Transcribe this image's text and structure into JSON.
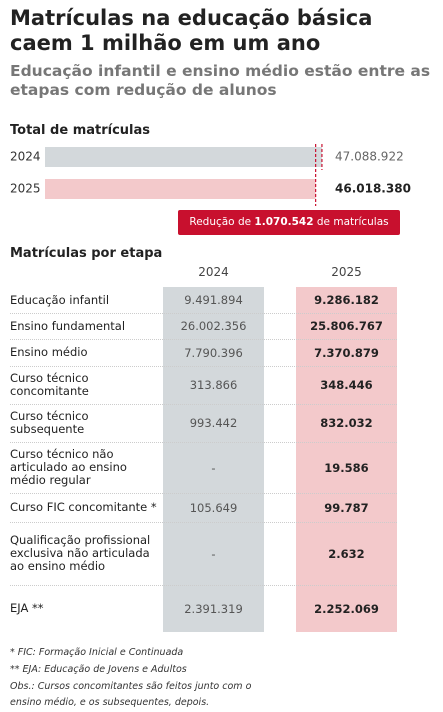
{
  "header": {
    "title": "Matrículas na educação básica caem 1 milhão em um ano",
    "subtitle": "Educação infantil e ensino médio estão entre as etapas com redução de alunos"
  },
  "chart_data": {
    "type": "bar",
    "orientation": "horizontal",
    "title": "Total de matrículas",
    "categories": [
      "2024",
      "2025"
    ],
    "values": [
      47088922,
      46018380
    ],
    "value_labels": [
      "47.088.922",
      "46.018.380"
    ],
    "colors": [
      "#d3d8db",
      "#f3c9cb"
    ],
    "xlim": [
      0,
      47100000
    ],
    "annotation": {
      "prefix": "Redução de",
      "value": "1.070.542",
      "suffix": "de matrículas"
    }
  },
  "table": {
    "title": "Matrículas por etapa",
    "columns": [
      "2024",
      "2025"
    ],
    "rows": [
      [
        "Educação infantil",
        "9.491.894",
        "9.286.182"
      ],
      [
        "Ensino fundamental",
        "26.002.356",
        "25.806.767"
      ],
      [
        "Ensino médio",
        "7.790.396",
        "7.370.879"
      ],
      [
        "Curso técnico concomitante",
        "313.866",
        "348.446"
      ],
      [
        "Curso técnico subsequente",
        "993.442",
        "832.032"
      ],
      [
        "Curso técnico não articulado ao ensino médio regular",
        "-",
        "19.586"
      ],
      [
        "Curso FIC concomitante *",
        "105.649",
        "99.787"
      ],
      [
        "Qualificação profissional exclusiva não articulada ao ensino médio",
        "-",
        "2.632"
      ],
      [
        "EJA **",
        "2.391.319",
        "2.252.069"
      ]
    ]
  },
  "notes": [
    "* FIC: Formação Inicial e Continuada",
    "** EJA: Educação de Jovens e Adultos",
    "Obs.: Cursos concomitantes são feitos junto com o ensino médio, e os subsequentes, depois."
  ]
}
